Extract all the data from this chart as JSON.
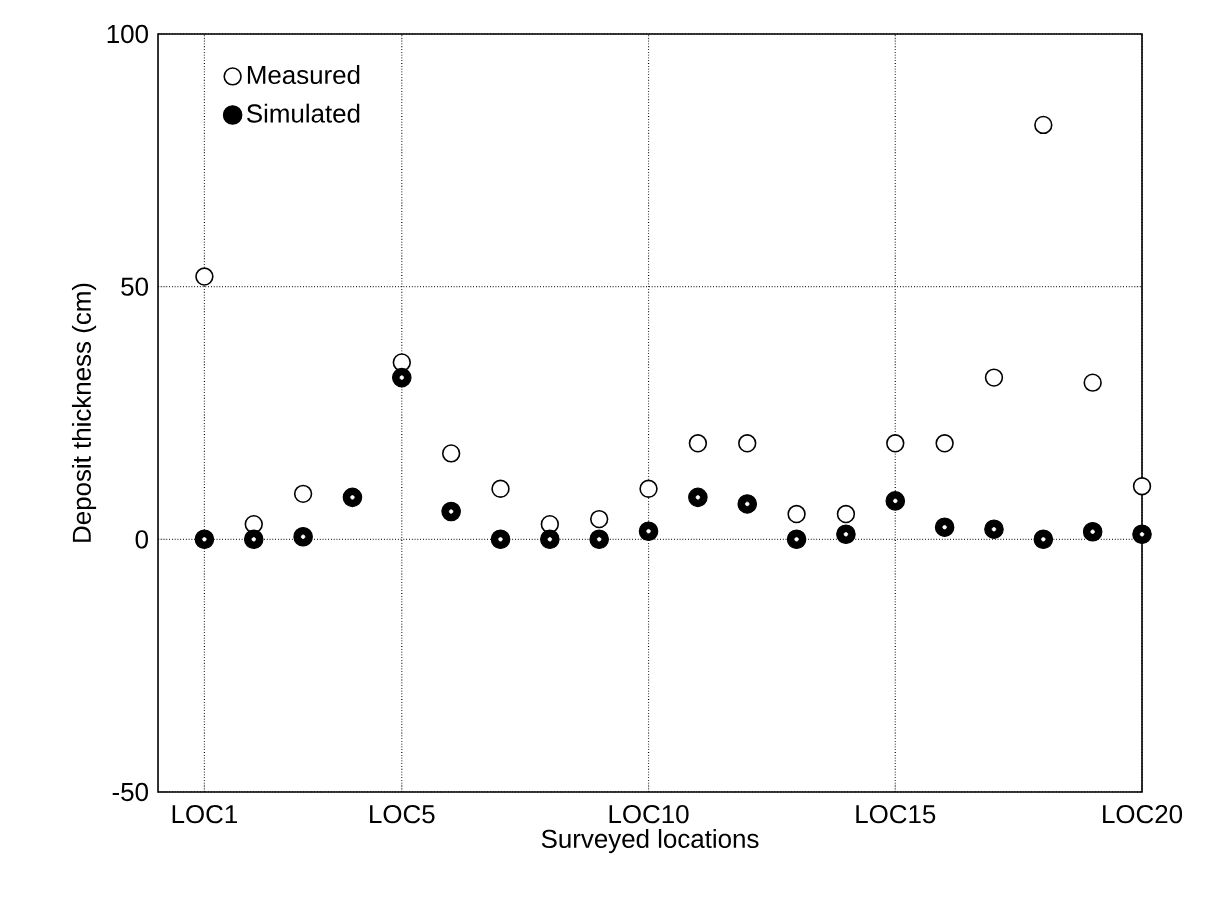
{
  "chart_data": {
    "type": "scatter",
    "xlabel": "Surveyed locations",
    "ylabel": "Deposit thickness (cm)",
    "categories": [
      "LOC1",
      null,
      null,
      null,
      "LOC5",
      null,
      null,
      null,
      null,
      "LOC10",
      null,
      null,
      null,
      null,
      "LOC15",
      null,
      null,
      null,
      null,
      "LOC20"
    ],
    "series": [
      {
        "name": "Measured",
        "color": "#000000",
        "values": [
          52,
          3,
          9,
          null,
          35,
          17,
          10,
          3,
          4,
          10,
          19,
          19,
          5,
          5,
          19,
          19,
          32,
          82,
          31,
          10.5
        ]
      },
      {
        "name": "Simulated",
        "color": "#000000",
        "values": [
          0,
          0,
          0.5,
          8.3,
          32,
          5.5,
          0,
          0,
          0,
          1.6,
          8.3,
          7,
          0,
          1,
          7.6,
          2.4,
          2,
          0,
          1.5,
          1
        ]
      }
    ],
    "ylim": [
      -50,
      100
    ],
    "yticks": [
      -50,
      0,
      50,
      100
    ],
    "grid": true,
    "legend": "top left",
    "marker": "circle"
  }
}
